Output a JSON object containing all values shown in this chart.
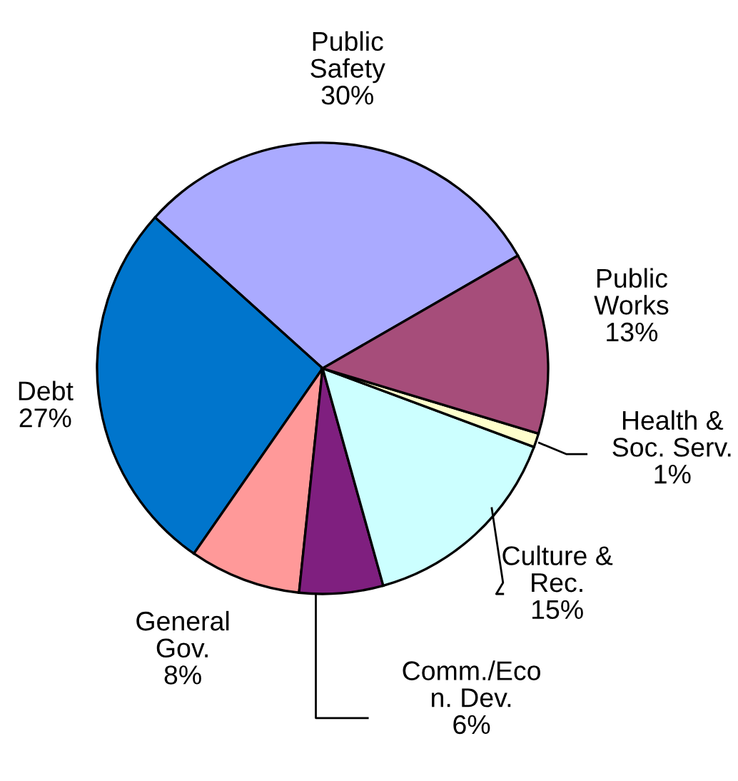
{
  "chart_data": {
    "type": "pie",
    "categories": [
      "Public\nSafety",
      "Debt",
      "General\nGov.",
      "Comm./Eco\nn. Dev.",
      "Culture &\nRec.",
      "Health &\nSoc. Serv.",
      "Public\nWorks"
    ],
    "values": [
      30,
      27,
      8,
      6,
      15,
      1,
      13
    ],
    "value_labels": [
      "30%",
      "27%",
      "8%",
      "6%",
      "15%",
      "1%",
      "13%"
    ],
    "colors": [
      "#aaaaff",
      "#0075cc",
      "#ff9999",
      "#7f1f7f",
      "#ccffff",
      "#ffffcc",
      "#a64d7a"
    ],
    "legend": false
  }
}
